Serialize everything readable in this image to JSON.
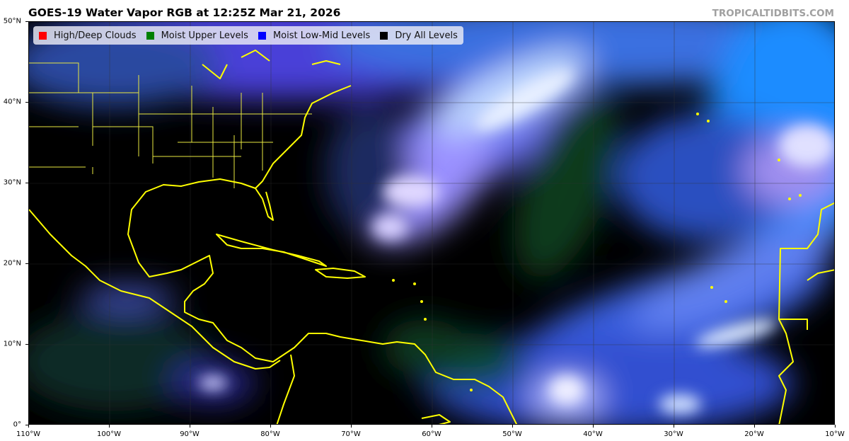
{
  "title": "GOES-19 Water Vapor RGB at 12:25Z Mar 21, 2026",
  "credit": "TROPICALTIDBITS.COM",
  "legend": [
    {
      "label": "High/Deep Clouds",
      "color": "#ff0000"
    },
    {
      "label": "Moist Upper Levels",
      "color": "#008000"
    },
    {
      "label": "Moist Low-Mid Levels",
      "color": "#0000ff"
    },
    {
      "label": "Dry All Levels",
      "color": "#000000"
    }
  ],
  "axes": {
    "lat_labels": [
      "50°N",
      "40°N",
      "30°N",
      "20°N",
      "10°N",
      "0°"
    ],
    "lon_labels": [
      "110°W",
      "100°W",
      "90°W",
      "80°W",
      "70°W",
      "60°W",
      "50°W",
      "40°W",
      "30°W",
      "20°W",
      "10°W"
    ]
  },
  "colors": {
    "coastline": "#ffff00",
    "gridline": "#333333"
  }
}
